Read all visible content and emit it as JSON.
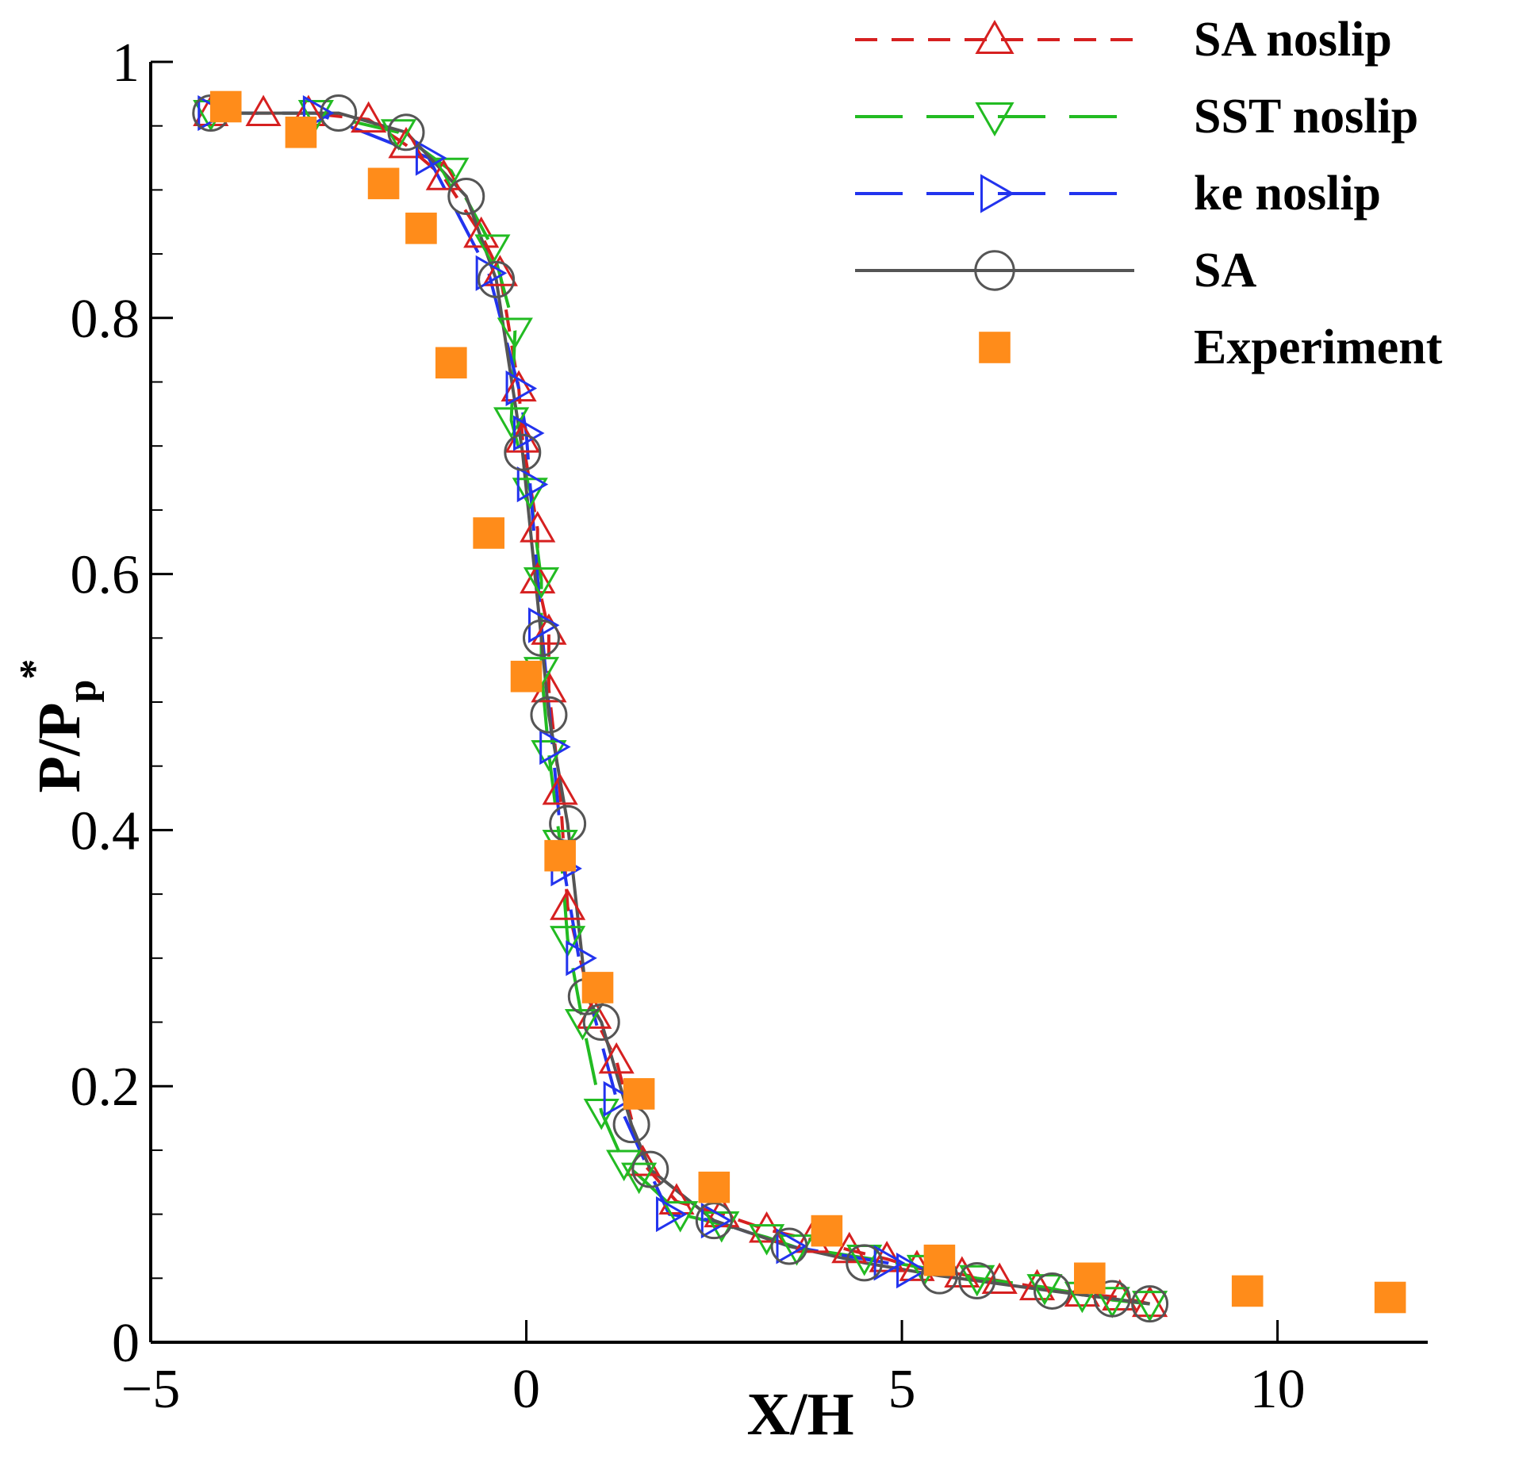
{
  "chart_data": {
    "type": "line",
    "xlabel": "X/H",
    "ylabel_main": "P/P",
    "ylabel_sub": "p",
    "ylabel_sup": "*",
    "xlim": [
      -5,
      12
    ],
    "ylim": [
      0,
      1
    ],
    "xticks": [
      -5,
      0,
      5,
      10
    ],
    "xtick_labels": [
      "−5",
      "0",
      "5",
      "10"
    ],
    "yticks": [
      0,
      0.2,
      0.4,
      0.6,
      0.8,
      1
    ],
    "ytick_labels": [
      "0",
      "0.2",
      "0.4",
      "0.6",
      "0.8",
      "1"
    ],
    "y_minor_step": 0.05,
    "legend_position": "top-right",
    "series": [
      {
        "name": "SA noslip",
        "color": "#d62020",
        "line": "dash",
        "marker": "triangle-up",
        "x": [
          -4.2,
          -3.5,
          -2.9,
          -2.1,
          -1.6,
          -1.1,
          -0.6,
          -0.35,
          -0.1,
          -0.05,
          0.15,
          0.15,
          0.3,
          0.3,
          0.45,
          0.55,
          0.9,
          1.2,
          1.55,
          2.0,
          2.6,
          3.2,
          3.8,
          4.3,
          4.8,
          5.2,
          5.8,
          6.3,
          6.8,
          7.4,
          7.9,
          8.3
        ],
        "y": [
          0.96,
          0.96,
          0.96,
          0.955,
          0.935,
          0.91,
          0.865,
          0.835,
          0.745,
          0.705,
          0.635,
          0.595,
          0.555,
          0.51,
          0.43,
          0.34,
          0.255,
          0.22,
          0.14,
          0.11,
          0.1,
          0.088,
          0.08,
          0.072,
          0.065,
          0.058,
          0.053,
          0.048,
          0.043,
          0.038,
          0.035,
          0.03
        ]
      },
      {
        "name": "SST noslip",
        "color": "#22bb22",
        "line": "longdash",
        "marker": "triangle-down",
        "x": [
          -4.2,
          -2.8,
          -1.7,
          -1.0,
          -0.45,
          -0.15,
          -0.2,
          0.05,
          0.2,
          0.2,
          0.3,
          0.45,
          0.55,
          0.75,
          1.0,
          1.3,
          1.5,
          2.05,
          2.6,
          3.2,
          3.6,
          4.5,
          5.3,
          6.0,
          6.9,
          7.4,
          7.8,
          8.3
        ],
        "y": [
          0.96,
          0.96,
          0.945,
          0.915,
          0.855,
          0.79,
          0.72,
          0.665,
          0.595,
          0.525,
          0.46,
          0.39,
          0.315,
          0.25,
          0.18,
          0.14,
          0.13,
          0.1,
          0.092,
          0.082,
          0.074,
          0.066,
          0.058,
          0.05,
          0.043,
          0.037,
          0.033,
          0.03
        ]
      },
      {
        "name": "ke noslip",
        "color": "#2233ee",
        "line": "longdash",
        "marker": "triangle-right",
        "x": [
          -4.2,
          -2.8,
          -1.3,
          -0.5,
          -0.1,
          0.0,
          0.05,
          0.2,
          0.35,
          0.5,
          0.7,
          1.2,
          1.9,
          2.5,
          3.5,
          4.8,
          5.1
        ],
        "y": [
          0.96,
          0.96,
          0.925,
          0.835,
          0.745,
          0.71,
          0.67,
          0.56,
          0.465,
          0.37,
          0.3,
          0.19,
          0.1,
          0.095,
          0.075,
          0.062,
          0.056
        ]
      },
      {
        "name": "SA",
        "color": "#555555",
        "line": "solid",
        "marker": "circle",
        "x": [
          -4.2,
          -2.5,
          -1.6,
          -0.8,
          -0.4,
          -0.05,
          0.2,
          0.3,
          0.55,
          0.8,
          1.0,
          1.4,
          1.65,
          2.5,
          3.5,
          4.5,
          5.5,
          6.0,
          7.0,
          7.8,
          8.3
        ],
        "y": [
          0.96,
          0.96,
          0.945,
          0.895,
          0.83,
          0.695,
          0.55,
          0.49,
          0.405,
          0.27,
          0.25,
          0.17,
          0.135,
          0.095,
          0.075,
          0.062,
          0.052,
          0.048,
          0.04,
          0.034,
          0.03
        ]
      },
      {
        "name": "Experiment",
        "color": "#ff8c1a",
        "line": "none",
        "marker": "square",
        "x": [
          -4.0,
          -3.0,
          -1.9,
          -1.4,
          -1.0,
          -0.5,
          0.0,
          0.45,
          0.95,
          1.5,
          2.5,
          4.0,
          5.5,
          7.5,
          9.6,
          11.5
        ],
        "y": [
          0.965,
          0.945,
          0.905,
          0.87,
          0.765,
          0.632,
          0.52,
          0.38,
          0.277,
          0.194,
          0.121,
          0.087,
          0.064,
          0.05,
          0.04,
          0.035
        ]
      }
    ]
  }
}
